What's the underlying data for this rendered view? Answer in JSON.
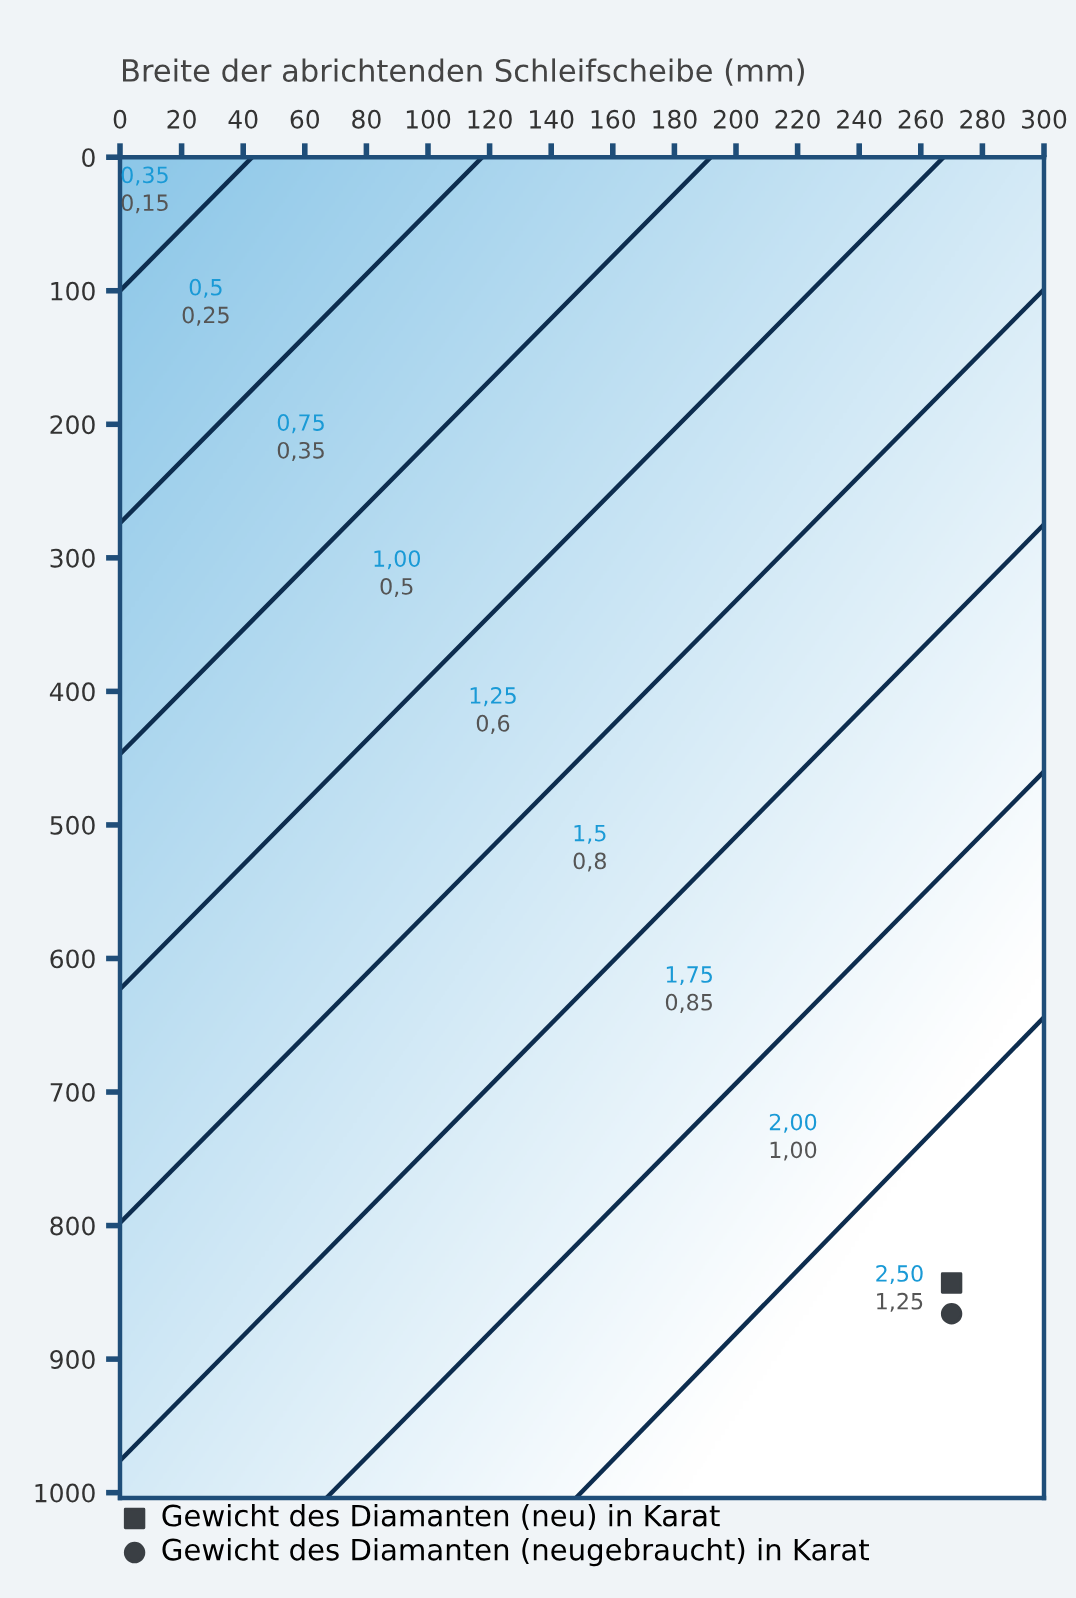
{
  "chart_data": {
    "type": "line",
    "xlabel": "Breite der abrichtenden Schleifscheibe (mm)",
    "xlim": [
      0,
      300
    ],
    "xticks": [
      0,
      20,
      40,
      60,
      80,
      100,
      120,
      140,
      160,
      180,
      200,
      220,
      240,
      260,
      280,
      300
    ],
    "ylim": [
      1004,
      0
    ],
    "yticks": [
      0,
      100,
      200,
      300,
      400,
      500,
      600,
      700,
      800,
      900,
      1000
    ],
    "grid": false,
    "legend": "bottom",
    "marker": "none",
    "line_style": "solid",
    "series": [
      {
        "color": "#0d2d4f",
        "x": [
          0,
          42.9
        ],
        "values": [
          100,
          0
        ]
      },
      {
        "color": "#0d2d4f",
        "x": [
          0,
          117.6
        ],
        "values": [
          274,
          0
        ]
      },
      {
        "color": "#0d2d4f",
        "x": [
          0,
          191.8
        ],
        "values": [
          447,
          0
        ]
      },
      {
        "color": "#0d2d4f",
        "x": [
          0,
          267.4
        ],
        "values": [
          623,
          0
        ]
      },
      {
        "color": "#0d2d4f",
        "x": [
          0,
          300
        ],
        "values": [
          798,
          99
        ]
      },
      {
        "color": "#0d2d4f",
        "x": [
          0,
          300
        ],
        "values": [
          976,
          275
        ]
      },
      {
        "color": "#0d2d4f",
        "x": [
          67,
          300
        ],
        "values": [
          1004,
          460
        ]
      },
      {
        "color": "#0d2d4f",
        "x": [
          148,
          300
        ],
        "values": [
          1004,
          644
        ]
      },
      {
        "type": "scatter",
        "marker": "square",
        "name": "Gewicht des Diamanten (neu) in Karat",
        "color": "#3a3f44",
        "x": [
          270
        ],
        "values": [
          843
        ]
      },
      {
        "type": "scatter",
        "marker": "circle",
        "name": "Gewicht des Diamanten (neugebraucht) in Karat",
        "color": "#3a3f44",
        "x": [
          270
        ],
        "values": [
          866
        ]
      }
    ],
    "annotations": [
      "0,35",
      "0,15",
      "0,5",
      "0,25",
      "0,75",
      "0,35",
      "1,00",
      "0,5",
      "1,25",
      "0,6",
      "1,5",
      "0,8",
      "1,75",
      "0,85",
      "2,00",
      "1,00",
      "2,50",
      "1,25"
    ]
  }
}
